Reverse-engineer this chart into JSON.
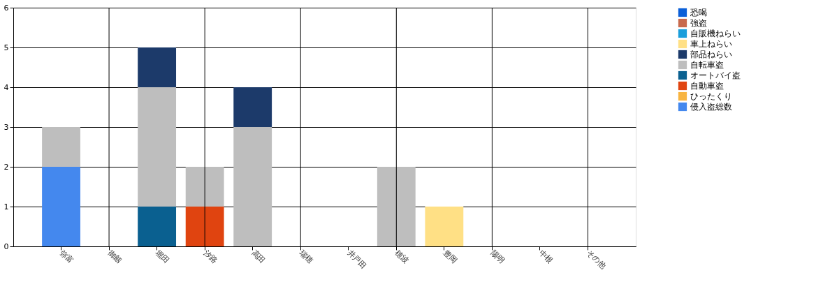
{
  "chart_data": {
    "type": "bar",
    "stacked": true,
    "categories": [
      "弥富",
      "御劔",
      "堀田",
      "汐路",
      "高田",
      "瑞穂",
      "井戸田",
      "穂波",
      "豊岡",
      "陽明",
      "中根",
      "その他"
    ],
    "series": [
      {
        "name": "侵入盗総数",
        "color": "#4488ee",
        "values": [
          2,
          0,
          0,
          0,
          0,
          0,
          0,
          0,
          0,
          0,
          0,
          0
        ]
      },
      {
        "name": "ひったくり",
        "color": "#f8b440",
        "values": [
          0,
          0,
          0,
          0,
          0,
          0,
          0,
          0,
          0,
          0,
          0,
          0
        ]
      },
      {
        "name": "自動車盗",
        "color": "#e04410",
        "values": [
          0,
          0,
          0,
          1,
          0,
          0,
          0,
          0,
          0,
          0,
          0,
          0
        ]
      },
      {
        "name": "オートバイ盗",
        "color": "#0a6090",
        "values": [
          0,
          0,
          1,
          0,
          0,
          0,
          0,
          0,
          0,
          0,
          0,
          0
        ]
      },
      {
        "name": "自転車盗",
        "color": "#bebebe",
        "values": [
          1,
          0,
          3,
          1,
          3,
          0,
          0,
          2,
          0,
          0,
          0,
          0
        ]
      },
      {
        "name": "部品ねらい",
        "color": "#1c3a6a",
        "values": [
          0,
          0,
          1,
          0,
          1,
          0,
          0,
          0,
          0,
          0,
          0,
          0
        ]
      },
      {
        "name": "車上ねらい",
        "color": "#ffe085",
        "values": [
          0,
          0,
          0,
          0,
          0,
          0,
          0,
          0,
          1,
          0,
          0,
          0
        ]
      },
      {
        "name": "自販機ねらい",
        "color": "#1a9edb",
        "values": [
          0,
          0,
          0,
          0,
          0,
          0,
          0,
          0,
          0,
          0,
          0,
          0
        ]
      },
      {
        "name": "強盗",
        "color": "#c8694c",
        "values": [
          0,
          0,
          0,
          0,
          0,
          0,
          0,
          0,
          0,
          0,
          0,
          0
        ]
      },
      {
        "name": "恐喝",
        "color": "#0a5fd8",
        "values": [
          0,
          0,
          0,
          0,
          0,
          0,
          0,
          0,
          0,
          0,
          0,
          0
        ]
      }
    ],
    "ylim": [
      0,
      6
    ],
    "yticks": [
      0,
      1,
      2,
      3,
      4,
      5,
      6
    ],
    "grid": true,
    "legend": "top right"
  }
}
